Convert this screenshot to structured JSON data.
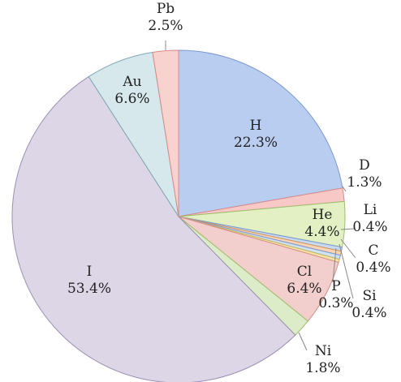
{
  "chart_data": {
    "type": "pie",
    "title": "",
    "unit": "%",
    "slices": [
      {
        "name": "H",
        "label": "22.3%",
        "value": 22.3,
        "fill": "#b9cdf0",
        "stroke": "#7b9ad1"
      },
      {
        "name": "D",
        "label": "1.3%",
        "value": 1.3,
        "fill": "#f7c8c6",
        "stroke": "#d98a86"
      },
      {
        "name": "He",
        "label": "4.4%",
        "value": 4.4,
        "fill": "#e2f0c4",
        "stroke": "#9dbf6a"
      },
      {
        "name": "Li",
        "label": "0.4%",
        "value": 0.4,
        "fill": "#c7d9f2",
        "stroke": "#7b9ad1"
      },
      {
        "name": "C",
        "label": "0.4%",
        "value": 0.4,
        "fill": "#fbd5b3",
        "stroke": "#d9955a"
      },
      {
        "name": "Si",
        "label": "0.4%",
        "value": 0.4,
        "fill": "#cfe1f2",
        "stroke": "#7b9ad1"
      },
      {
        "name": "P",
        "label": "0.3%",
        "value": 0.3,
        "fill": "#f5e6a8",
        "stroke": "#c9b45a"
      },
      {
        "name": "Cl",
        "label": "6.4%",
        "value": 6.4,
        "fill": "#f2cfcd",
        "stroke": "#d98a86"
      },
      {
        "name": "Ni",
        "label": "1.8%",
        "value": 1.8,
        "fill": "#dcecc8",
        "stroke": "#9dbf6a"
      },
      {
        "name": "I",
        "label": "53.4%",
        "value": 53.4,
        "fill": "#dcd6e6",
        "stroke": "#9a8fb3"
      },
      {
        "name": "Au",
        "label": "6.6%",
        "value": 6.6,
        "fill": "#d6e8ec",
        "stroke": "#7fa8b5"
      },
      {
        "name": "Pb",
        "label": "2.5%",
        "value": 2.5,
        "fill": "#f8d2cf",
        "stroke": "#d98a86"
      }
    ]
  }
}
